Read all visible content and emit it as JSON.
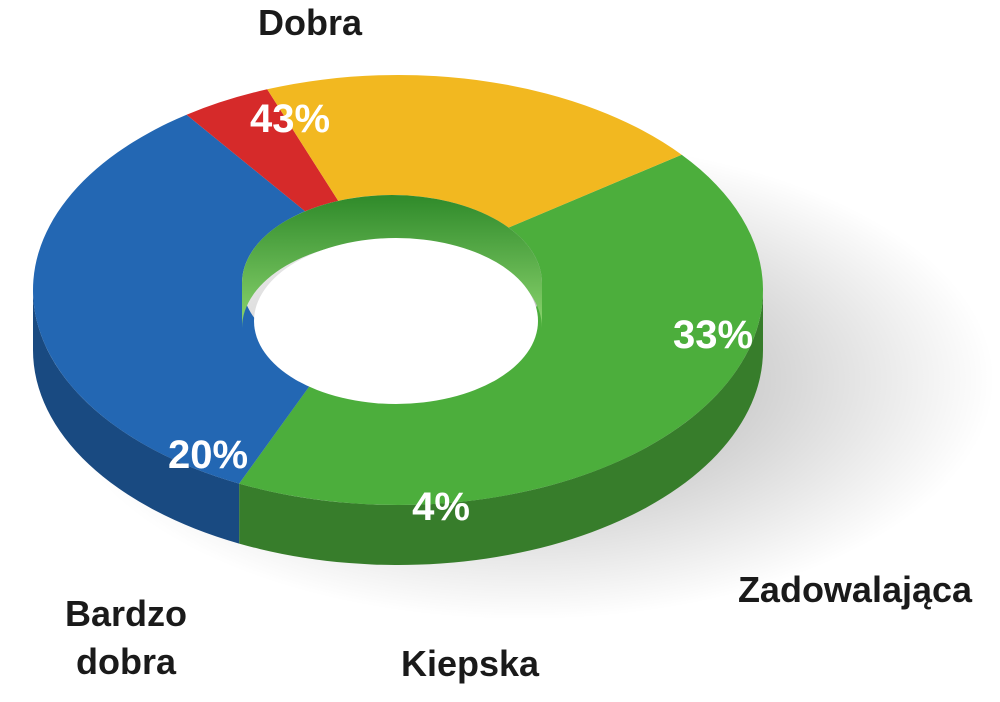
{
  "chart_data": {
    "type": "pie",
    "style": "3d-donut",
    "title": "",
    "slices": [
      {
        "category": "Dobra",
        "category_lines": [
          "Dobra"
        ],
        "value": 43,
        "value_label": "43%",
        "color": "#4cae3c"
      },
      {
        "category": "Zadowalająca",
        "category_lines": [
          "Zadowalająca"
        ],
        "value": 33,
        "value_label": "33%",
        "color": "#2367b3"
      },
      {
        "category": "Kiepska",
        "category_lines": [
          "Kiepska"
        ],
        "value": 4,
        "value_label": "4%",
        "color": "#d62a2a"
      },
      {
        "category": "Bardzo dobra",
        "category_lines": [
          "Bardzo",
          "dobra"
        ],
        "value": 20,
        "value_label": "20%",
        "color": "#f2b820"
      }
    ]
  }
}
